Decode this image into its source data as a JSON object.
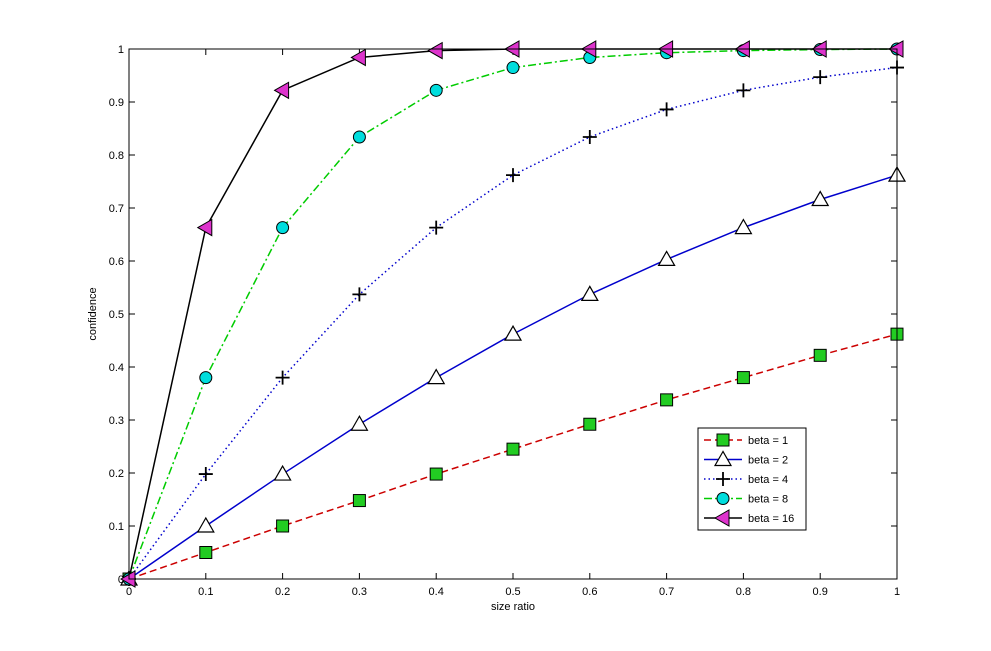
{
  "chart_data": {
    "type": "line",
    "title": "",
    "xlabel": "size ratio",
    "ylabel": "confidence",
    "xlim": [
      0,
      1
    ],
    "ylim": [
      0,
      1
    ],
    "grid": false,
    "legend_position": "bottom-right",
    "x_ticks": [
      "0",
      "0.1",
      "0.2",
      "0.3",
      "0.4",
      "0.5",
      "0.6",
      "0.7",
      "0.8",
      "0.9",
      "1"
    ],
    "y_ticks": [
      "0",
      "0.1",
      "0.2",
      "0.3",
      "0.4",
      "0.5",
      "0.6",
      "0.7",
      "0.8",
      "0.9",
      "1"
    ],
    "x": [
      0,
      0.1,
      0.2,
      0.3,
      0.4,
      0.5,
      0.6,
      0.7,
      0.8,
      0.9,
      1
    ],
    "series": [
      {
        "name": "beta = 1",
        "color": "#cc0000",
        "line_style": "dashed",
        "marker": "square",
        "marker_fill": "#22cc22",
        "values": [
          0,
          0.05,
          0.1,
          0.148,
          0.198,
          0.245,
          0.292,
          0.338,
          0.38,
          0.422,
          0.462
        ]
      },
      {
        "name": "beta = 2",
        "color": "#0000cc",
        "line_style": "solid",
        "marker": "triangle-up",
        "marker_fill": "#ffffff",
        "values": [
          0,
          0.1,
          0.198,
          0.292,
          0.38,
          0.462,
          0.537,
          0.603,
          0.663,
          0.716,
          0.762
        ]
      },
      {
        "name": "beta = 4",
        "color": "#0000cc",
        "line_style": "dotted",
        "marker": "plus",
        "marker_fill": "#000000",
        "values": [
          0,
          0.198,
          0.38,
          0.537,
          0.663,
          0.762,
          0.834,
          0.886,
          0.922,
          0.947,
          0.965
        ]
      },
      {
        "name": "beta =  8",
        "color": "#00cc00",
        "line_style": "dashdot",
        "marker": "circle",
        "marker_fill": "#00dddd",
        "values": [
          0,
          0.38,
          0.663,
          0.834,
          0.922,
          0.965,
          0.984,
          0.993,
          0.997,
          0.999,
          1.0
        ]
      },
      {
        "name": "beta = 16",
        "color": "#000000",
        "line_style": "solid",
        "marker": "triangle-left",
        "marker_fill": "#dd33cc",
        "values": [
          0,
          0.663,
          0.922,
          0.984,
          0.997,
          1.0,
          1.0,
          1.0,
          1.0,
          1.0,
          1.0
        ]
      }
    ]
  }
}
